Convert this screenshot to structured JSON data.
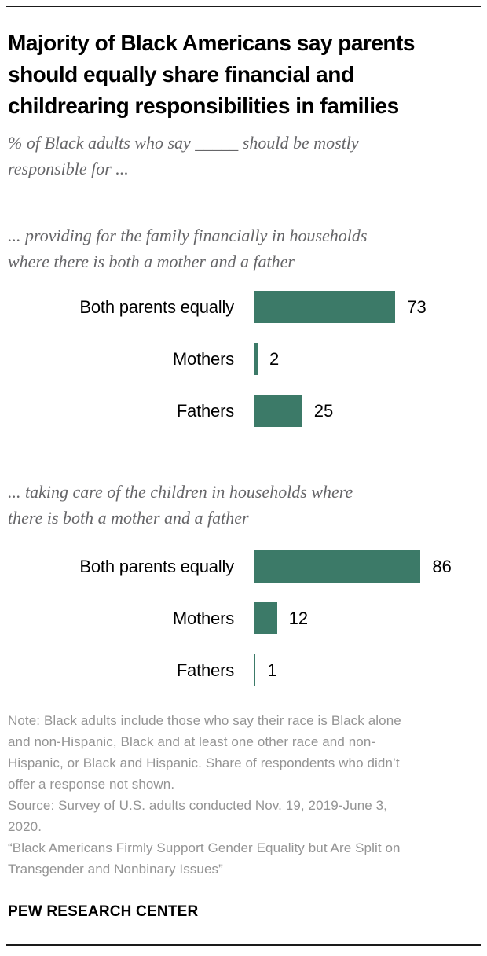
{
  "theme": {
    "bar_color": "#3c7a68",
    "title_color": "#000000",
    "subtitle_color": "#666669",
    "note_color": "#949494",
    "label_color": "#000000",
    "rule_color": "#1a1a1a"
  },
  "header": {
    "title_lines": [
      "Majority of Black Americans say parents",
      "should equally share financial and",
      "childrearing responsibilities in families"
    ],
    "subtitle_lines": [
      "% of Black adults who say _____ should be mostly",
      "responsible for ..."
    ]
  },
  "chart_data": [
    {
      "type": "bar",
      "orientation": "horizontal",
      "title": "... providing for the family financially in households where there is both a mother and a father",
      "title_lines": [
        "... providing for the family financially in households",
        "where there is both a mother and a father"
      ],
      "categories": [
        "Both parents equally",
        "Mothers",
        "Fathers"
      ],
      "values": [
        73,
        2,
        25
      ],
      "xlabel": "",
      "ylabel": "",
      "xlim": [
        0,
        100
      ],
      "grid": false,
      "legend": "none",
      "value_labels": "end-of-bar"
    },
    {
      "type": "bar",
      "orientation": "horizontal",
      "title": "... taking care of the children in households where there is both a mother and a father",
      "title_lines": [
        "... taking care of the children in households where",
        "there is both a mother and a father"
      ],
      "categories": [
        "Both parents equally",
        "Mothers",
        "Fathers"
      ],
      "values": [
        86,
        12,
        1
      ],
      "xlabel": "",
      "ylabel": "",
      "xlim": [
        0,
        100
      ],
      "grid": false,
      "legend": "none",
      "value_labels": "end-of-bar"
    }
  ],
  "footnote": {
    "note_lines": [
      "Note: Black adults include those who say their race is Black alone",
      "and non-Hispanic, Black and at least one other race and non-",
      "Hispanic, or Black and Hispanic. Share of respondents who didn’t",
      "offer a response not shown."
    ],
    "source_lines": [
      "Source: Survey of U.S. adults conducted Nov. 19, 2019-June 3,",
      "2020."
    ],
    "quote_lines": [
      "“Black Americans Firmly Support Gender Equality but Are Split on",
      "Transgender and Nonbinary Issues”"
    ]
  },
  "footer": {
    "brand": "PEW RESEARCH CENTER"
  }
}
